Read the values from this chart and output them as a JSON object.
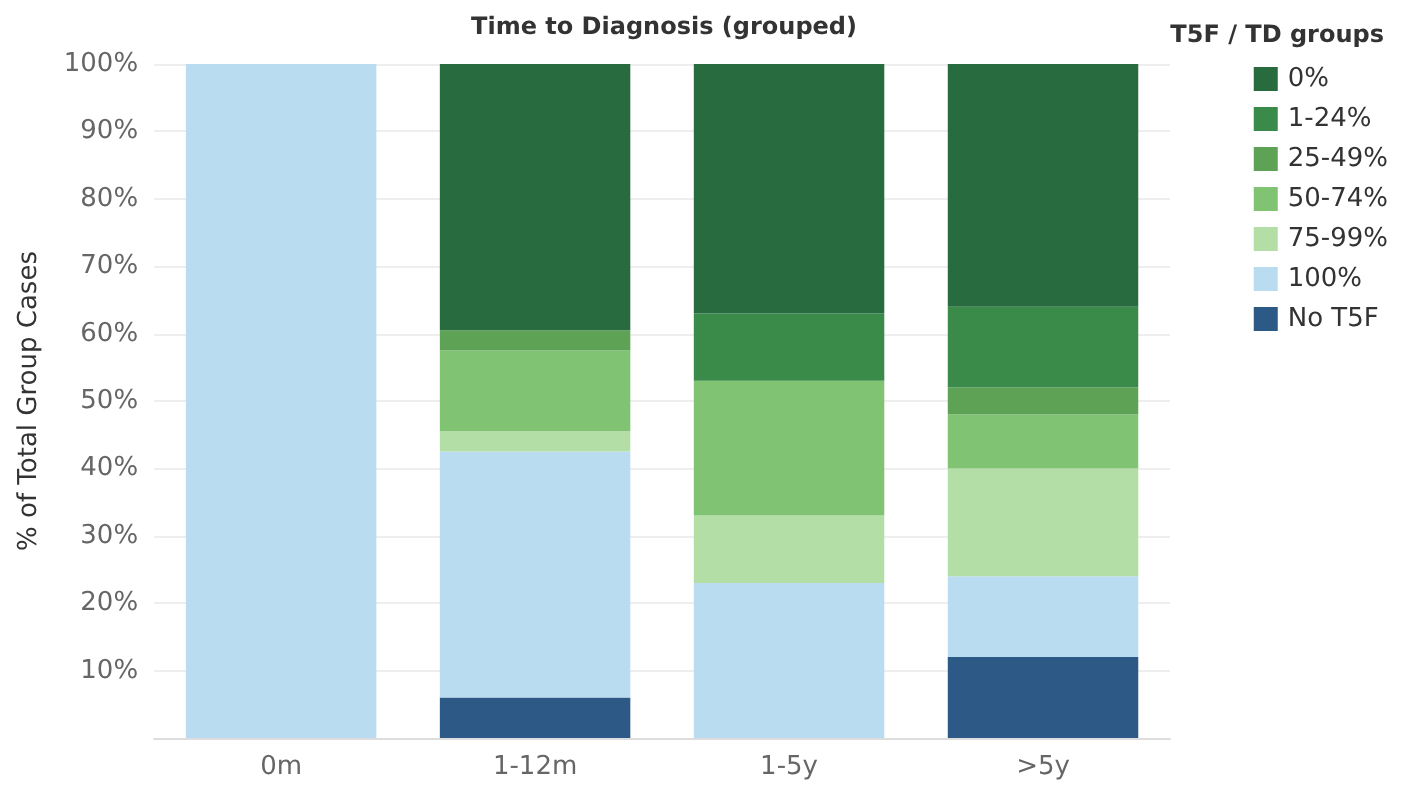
{
  "chart_data": {
    "type": "bar",
    "title": "Time to Diagnosis (grouped)",
    "ylabel": "% of Total Group Cases",
    "legend_title": "T5F / TD groups",
    "categories": [
      "0m",
      "1-12m",
      "1-5y",
      ">5y"
    ],
    "stacked": true,
    "series": [
      {
        "name": "No T5F",
        "color": "#2c5985",
        "values": [
          0,
          6,
          0,
          12
        ]
      },
      {
        "name": "100%",
        "color": "#badcf0",
        "values": [
          100,
          36.5,
          23,
          12
        ]
      },
      {
        "name": "75-99%",
        "color": "#b3dfa6",
        "values": [
          0,
          3,
          10,
          16
        ]
      },
      {
        "name": "50-74%",
        "color": "#80c372",
        "values": [
          0,
          12,
          20,
          8
        ]
      },
      {
        "name": "25-49%",
        "color": "#5ea355",
        "values": [
          0,
          3,
          0,
          4
        ]
      },
      {
        "name": "1-24%",
        "color": "#3a8a4a",
        "values": [
          0,
          0,
          10,
          12
        ]
      },
      {
        "name": "0%",
        "color": "#276b3f",
        "values": [
          0,
          39.5,
          37,
          36
        ]
      }
    ],
    "ylim": [
      0,
      100
    ],
    "yticks": [
      {
        "value": 10,
        "label": "10%"
      },
      {
        "value": 20,
        "label": "20%"
      },
      {
        "value": 30,
        "label": "30%"
      },
      {
        "value": 40,
        "label": "40%"
      },
      {
        "value": 50,
        "label": "50%"
      },
      {
        "value": 60,
        "label": "60%"
      },
      {
        "value": 70,
        "label": "70%"
      },
      {
        "value": 80,
        "label": "80%"
      },
      {
        "value": 90,
        "label": "90%"
      },
      {
        "value": 100,
        "label": "100%"
      }
    ],
    "grid": "y",
    "legend": "right"
  }
}
